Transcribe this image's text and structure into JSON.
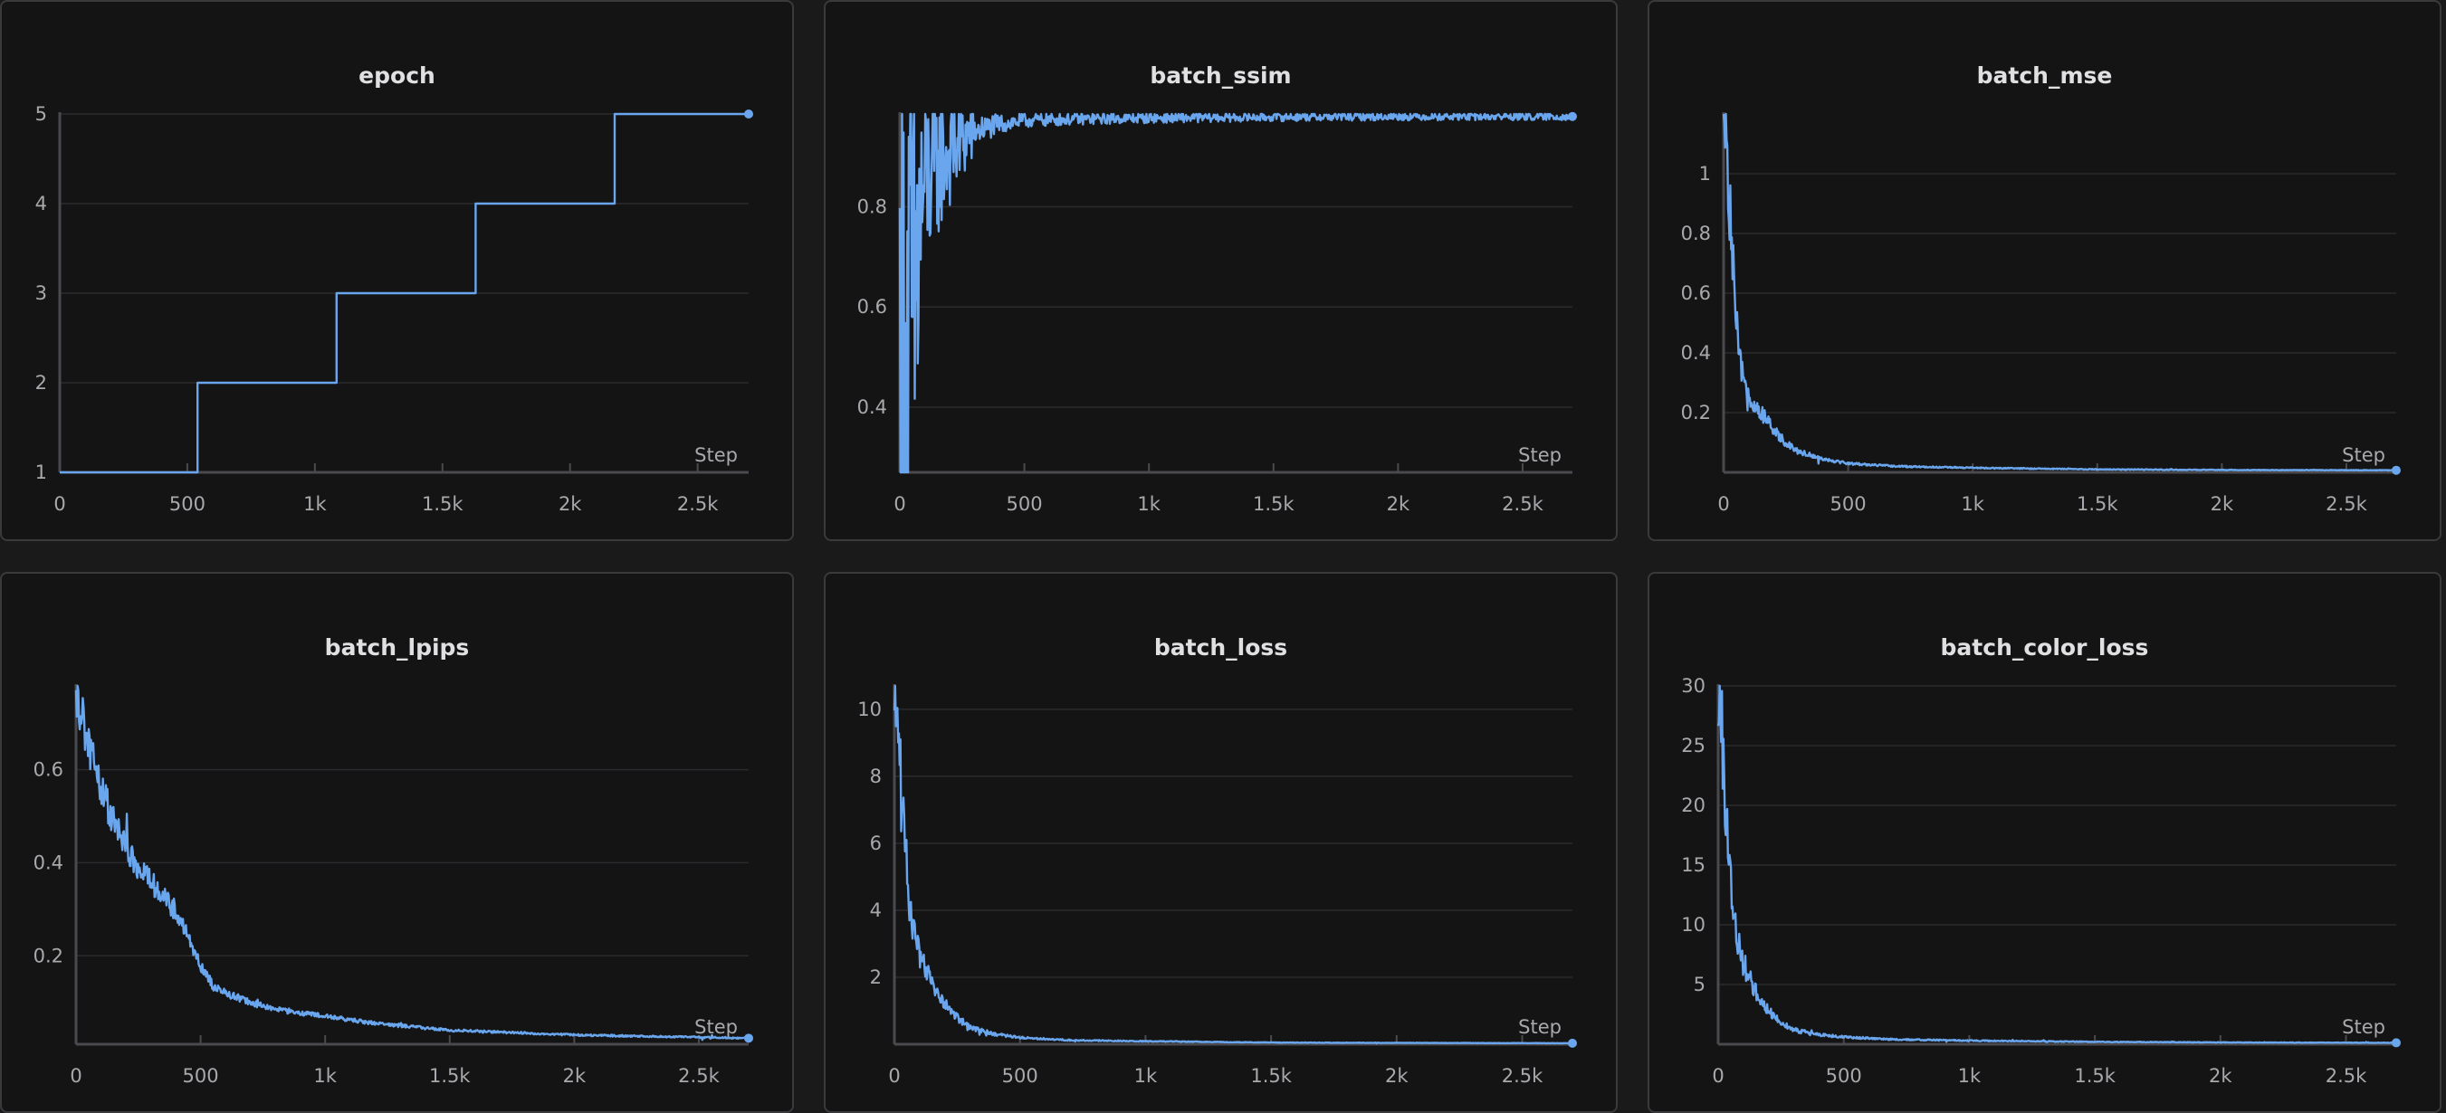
{
  "series_color": "#6aa6ee",
  "background_color": "#141415",
  "chart_data": [
    {
      "type": "line",
      "title": "epoch",
      "xlabel": "Step",
      "xlim": [
        0,
        2700
      ],
      "xticks": [
        0,
        500,
        1000,
        1500,
        2000,
        2500
      ],
      "xtick_labels": [
        "0",
        "500",
        "1k",
        "1.5k",
        "2k",
        "2.5k"
      ],
      "ylim": [
        1,
        5
      ],
      "yticks": [
        1,
        2,
        3,
        4,
        5
      ],
      "ytick_labels": [
        "1",
        "2",
        "3",
        "4",
        "5"
      ],
      "grid": true,
      "shape": "step",
      "x": [
        0,
        540,
        540,
        1085,
        1085,
        1630,
        1630,
        2175,
        2175,
        2700
      ],
      "y": [
        1,
        1,
        2,
        2,
        3,
        3,
        4,
        4,
        5,
        5
      ]
    },
    {
      "type": "line",
      "title": "batch_ssim",
      "xlabel": "Step",
      "xlim": [
        0,
        2700
      ],
      "xticks": [
        0,
        500,
        1000,
        1500,
        2000,
        2500
      ],
      "xtick_labels": [
        "0",
        "500",
        "1k",
        "1.5k",
        "2k",
        "2.5k"
      ],
      "ylim": [
        0.27,
        0.985
      ],
      "yticks": [
        0.4,
        0.6,
        0.8
      ],
      "ytick_labels": [
        "0.4",
        "0.6",
        "0.8"
      ],
      "grid": true,
      "noise": 0.012,
      "x": [
        0,
        20,
        40,
        60,
        80,
        100,
        130,
        160,
        200,
        250,
        300,
        400,
        500,
        700,
        1000,
        1500,
        2000,
        2700
      ],
      "y": [
        0.29,
        0.36,
        0.45,
        0.58,
        0.76,
        0.84,
        0.87,
        0.89,
        0.91,
        0.93,
        0.95,
        0.965,
        0.972,
        0.975,
        0.977,
        0.979,
        0.98,
        0.98
      ]
    },
    {
      "type": "line",
      "title": "batch_mse",
      "xlabel": "Step",
      "xlim": [
        0,
        2700
      ],
      "xticks": [
        0,
        500,
        1000,
        1500,
        2000,
        2500
      ],
      "xtick_labels": [
        "0",
        "500",
        "1k",
        "1.5k",
        "2k",
        "2.5k"
      ],
      "ylim": [
        0,
        1.2
      ],
      "yticks": [
        0.2,
        0.4,
        0.6,
        0.8,
        1
      ],
      "ytick_labels": [
        "0.2",
        "0.4",
        "0.6",
        "0.8",
        "1"
      ],
      "grid": true,
      "noise": 0.14,
      "x": [
        0,
        15,
        30,
        45,
        60,
        80,
        100,
        130,
        160,
        200,
        250,
        300,
        400,
        500,
        700,
        1000,
        1500,
        2000,
        2700
      ],
      "y": [
        1.19,
        1.05,
        0.8,
        0.58,
        0.4,
        0.3,
        0.26,
        0.22,
        0.19,
        0.14,
        0.1,
        0.07,
        0.045,
        0.03,
        0.02,
        0.015,
        0.01,
        0.008,
        0.007
      ]
    },
    {
      "type": "line",
      "title": "batch_lpips",
      "xlabel": "Step",
      "xlim": [
        0,
        2700
      ],
      "xticks": [
        0,
        500,
        1000,
        1500,
        2000,
        2500
      ],
      "xtick_labels": [
        "0",
        "500",
        "1k",
        "1.5k",
        "2k",
        "2.5k"
      ],
      "ylim": [
        0.01,
        0.78
      ],
      "yticks": [
        0.2,
        0.4,
        0.6
      ],
      "ytick_labels": [
        "0.2",
        "0.4",
        "0.6"
      ],
      "grid": true,
      "noise": 0.07,
      "x": [
        0,
        50,
        100,
        150,
        200,
        250,
        300,
        350,
        400,
        450,
        500,
        550,
        600,
        700,
        800,
        1000,
        1200,
        1500,
        2000,
        2500,
        2700
      ],
      "y": [
        0.76,
        0.66,
        0.56,
        0.49,
        0.43,
        0.39,
        0.36,
        0.33,
        0.29,
        0.24,
        0.18,
        0.135,
        0.12,
        0.1,
        0.085,
        0.07,
        0.055,
        0.04,
        0.03,
        0.025,
        0.023
      ]
    },
    {
      "type": "line",
      "title": "batch_loss",
      "xlabel": "Step",
      "xlim": [
        0,
        2700
      ],
      "xticks": [
        0,
        500,
        1000,
        1500,
        2000,
        2500
      ],
      "xtick_labels": [
        "0",
        "500",
        "1k",
        "1.5k",
        "2k",
        "2.5k"
      ],
      "ylim": [
        0,
        10.7
      ],
      "yticks": [
        2,
        4,
        6,
        8,
        10
      ],
      "ytick_labels": [
        "2",
        "4",
        "6",
        "8",
        "10"
      ],
      "grid": true,
      "noise": 0.16,
      "x": [
        0,
        15,
        30,
        45,
        60,
        80,
        100,
        130,
        160,
        200,
        250,
        300,
        400,
        500,
        700,
        1000,
        1500,
        2000,
        2700
      ],
      "y": [
        10.3,
        9.0,
        7.2,
        5.6,
        4.3,
        3.2,
        2.6,
        2.1,
        1.7,
        1.2,
        0.8,
        0.5,
        0.3,
        0.2,
        0.12,
        0.09,
        0.05,
        0.04,
        0.03
      ]
    },
    {
      "type": "line",
      "title": "batch_color_loss",
      "xlabel": "Step",
      "xlim": [
        0,
        2700
      ],
      "xticks": [
        0,
        500,
        1000,
        1500,
        2000,
        2500
      ],
      "xtick_labels": [
        "0",
        "500",
        "1k",
        "1.5k",
        "2k",
        "2.5k"
      ],
      "ylim": [
        0,
        30
      ],
      "yticks": [
        5,
        10,
        15,
        20,
        25,
        30
      ],
      "ytick_labels": [
        "5",
        "10",
        "15",
        "20",
        "25",
        "30"
      ],
      "grid": true,
      "noise": 0.16,
      "x": [
        0,
        15,
        30,
        45,
        60,
        80,
        100,
        130,
        160,
        200,
        250,
        300,
        400,
        500,
        700,
        1000,
        1500,
        2000,
        2700
      ],
      "y": [
        29.5,
        26.0,
        20.5,
        15.0,
        11.0,
        8.5,
        6.8,
        5.3,
        4.0,
        2.8,
        1.9,
        1.2,
        0.8,
        0.6,
        0.4,
        0.3,
        0.2,
        0.15,
        0.12
      ]
    }
  ]
}
